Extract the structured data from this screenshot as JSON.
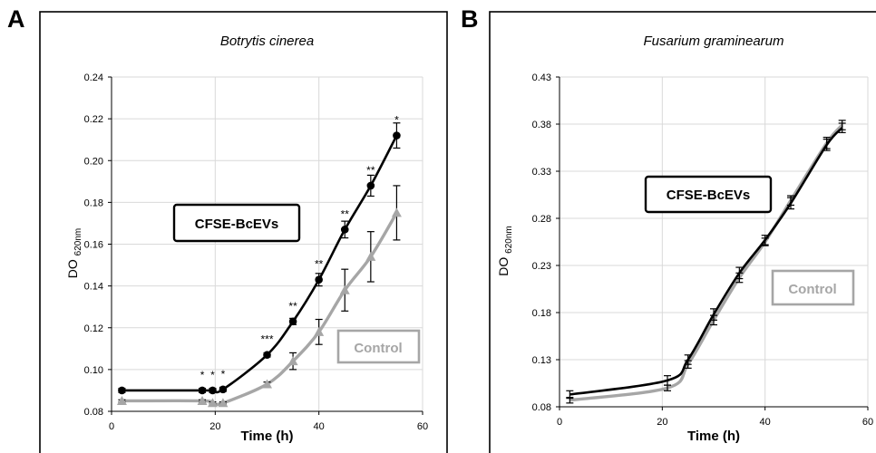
{
  "panels": [
    {
      "letter": "A"
    },
    {
      "letter": "B"
    }
  ],
  "chart_data": [
    {
      "type": "line",
      "title": "Botrytis cinerea",
      "xlabel": "Time (h)",
      "ylabel_main": "DO",
      "ylabel_sub": "620nm",
      "xlim": [
        0,
        60
      ],
      "ylim": [
        0.08,
        0.24
      ],
      "xticks": [
        0,
        20,
        40,
        60
      ],
      "xtick_labels": [
        "0",
        "20",
        "40",
        "60"
      ],
      "yticks": [
        0.08,
        0.1,
        0.12,
        0.14,
        0.16,
        0.18,
        0.2,
        0.22,
        0.24
      ],
      "ytick_labels": [
        "0.08",
        "0.10",
        "0.12",
        "0.14",
        "0.16",
        "0.18",
        "0.20",
        "0.22",
        "0.24"
      ],
      "grid": true,
      "series": [
        {
          "name": "CFSE-BcEVs",
          "color": "#000000",
          "marker": "circle",
          "x": [
            2,
            17.5,
            19.5,
            21.5,
            30,
            35,
            40,
            45,
            50,
            55
          ],
          "y": [
            0.09,
            0.09,
            0.09,
            0.0905,
            0.107,
            0.123,
            0.143,
            0.167,
            0.188,
            0.212
          ],
          "err": [
            0.001,
            0.001,
            0.001,
            0.001,
            0.001,
            0.0015,
            0.003,
            0.004,
            0.005,
            0.006
          ]
        },
        {
          "name": "Control",
          "color": "#a6a6a6",
          "marker": "triangle",
          "x": [
            2,
            17.5,
            19.5,
            21.5,
            30,
            35,
            40,
            45,
            50,
            55
          ],
          "y": [
            0.085,
            0.085,
            0.084,
            0.084,
            0.093,
            0.104,
            0.118,
            0.138,
            0.154,
            0.175
          ],
          "err": [
            0.0005,
            0.0005,
            0.0005,
            0.0005,
            0.001,
            0.004,
            0.006,
            0.01,
            0.012,
            0.013
          ]
        }
      ],
      "annotations": [
        {
          "x": 17.5,
          "y": 0.09,
          "text": "*"
        },
        {
          "x": 19.5,
          "y": 0.09,
          "text": "*"
        },
        {
          "x": 21.5,
          "y": 0.0905,
          "text": "*"
        },
        {
          "x": 30,
          "y": 0.107,
          "text": "***"
        },
        {
          "x": 35,
          "y": 0.123,
          "text": "**"
        },
        {
          "x": 40,
          "y": 0.143,
          "text": "**"
        },
        {
          "x": 45,
          "y": 0.167,
          "text": "**"
        },
        {
          "x": 50,
          "y": 0.188,
          "text": "**"
        },
        {
          "x": 55,
          "y": 0.212,
          "text": "*"
        }
      ]
    },
    {
      "type": "line",
      "title": "Fusarium graminearum",
      "xlabel": "Time (h)",
      "ylabel_main": "DO",
      "ylabel_sub": "620nm",
      "xlim": [
        0,
        60
      ],
      "ylim": [
        0.08,
        0.43
      ],
      "xticks": [
        0,
        20,
        40,
        60
      ],
      "xtick_labels": [
        "0",
        "20",
        "40",
        "60"
      ],
      "yticks": [
        0.08,
        0.13,
        0.18,
        0.23,
        0.28,
        0.33,
        0.38,
        0.43
      ],
      "ytick_labels": [
        "0.08",
        "0.13",
        "0.18",
        "0.23",
        "0.28",
        "0.33",
        "0.38",
        "0.43"
      ],
      "grid": true,
      "series": [
        {
          "name": "CFSE-BcEVs",
          "color": "#000000",
          "marker": "none",
          "x": [
            2,
            21,
            25,
            30,
            35,
            40,
            45,
            52,
            55
          ],
          "y": [
            0.093,
            0.108,
            0.13,
            0.178,
            0.222,
            0.257,
            0.296,
            0.358,
            0.376
          ],
          "err": [
            0.004,
            0.005,
            0.005,
            0.006,
            0.006,
            0.005,
            0.006,
            0.006,
            0.005
          ]
        },
        {
          "name": "Control",
          "color": "#a6a6a6",
          "marker": "none",
          "x": [
            2,
            21,
            25,
            30,
            35,
            40,
            45,
            52,
            55
          ],
          "y": [
            0.087,
            0.1,
            0.125,
            0.172,
            0.217,
            0.255,
            0.299,
            0.36,
            0.379
          ],
          "err": [
            0.003,
            0.003,
            0.004,
            0.005,
            0.005,
            0.004,
            0.005,
            0.006,
            0.005
          ]
        }
      ],
      "annotations": []
    }
  ]
}
